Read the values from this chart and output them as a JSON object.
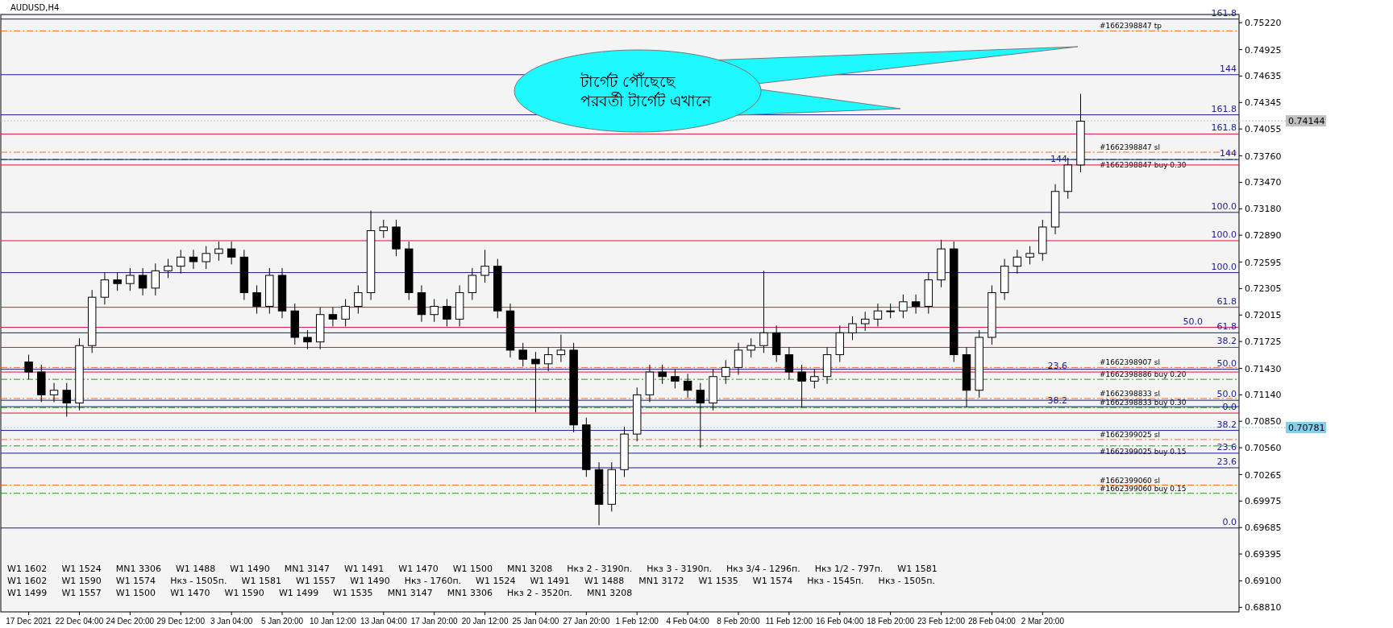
{
  "chart_data": {
    "type": "candlestick",
    "title": "AUDUSD,H4",
    "color": "#000000",
    "categories": [
      "17 Dec 2021",
      null,
      null,
      null,
      "22 Dec 04:00",
      null,
      null,
      null,
      "24 Dec 20:00",
      null,
      null,
      null,
      "29 Dec 12:00",
      null,
      null,
      null,
      "3 Jan 04:00",
      null,
      null,
      null,
      "5 Jan 20:00",
      null,
      null,
      null,
      "10 Jan 12:00",
      null,
      null,
      null,
      "13 Jan 04:00",
      null,
      null,
      null,
      "17 Jan 20:00",
      null,
      null,
      null,
      "20 Jan 12:00",
      null,
      null,
      null,
      "25 Jan 04:00",
      null,
      null,
      null,
      "27 Jan 20:00",
      null,
      null,
      null,
      "1 Feb 12:00",
      null,
      null,
      null,
      "4 Feb 04:00",
      null,
      null,
      null,
      "8 Feb 20:00",
      null,
      null,
      null,
      "11 Feb 12:00",
      null,
      null,
      null,
      "16 Feb 04:00",
      null,
      null,
      null,
      "18 Feb 20:00",
      null,
      null,
      null,
      "23 Feb 12:00",
      null,
      null,
      null,
      "28 Feb 04:00",
      null,
      null,
      null,
      "2 Mar 20:00",
      null,
      null,
      null,
      null,
      null,
      null,
      null,
      null,
      null,
      null,
      null,
      null,
      null,
      null,
      null
    ],
    "ohlc": [
      [
        0.715,
        0.7158,
        0.7131,
        0.7139
      ],
      [
        0.7139,
        0.7147,
        0.7106,
        0.7114
      ],
      [
        0.7114,
        0.7127,
        0.7106,
        0.7119
      ],
      [
        0.7119,
        0.7127,
        0.709,
        0.7105
      ],
      [
        0.7105,
        0.7176,
        0.7097,
        0.7168
      ],
      [
        0.7168,
        0.7229,
        0.716,
        0.7221
      ],
      [
        0.7221,
        0.7248,
        0.7213,
        0.724
      ],
      [
        0.724,
        0.7248,
        0.7228,
        0.7236
      ],
      [
        0.7236,
        0.7253,
        0.7228,
        0.7245
      ],
      [
        0.7245,
        0.7253,
        0.7223,
        0.7231
      ],
      [
        0.7231,
        0.7258,
        0.7223,
        0.725
      ],
      [
        0.725,
        0.7263,
        0.7242,
        0.7255
      ],
      [
        0.7255,
        0.7273,
        0.7247,
        0.7265
      ],
      [
        0.7265,
        0.7273,
        0.7252,
        0.726
      ],
      [
        0.726,
        0.7277,
        0.7252,
        0.7269
      ],
      [
        0.7269,
        0.7282,
        0.7261,
        0.7274
      ],
      [
        0.7274,
        0.7282,
        0.7257,
        0.7265
      ],
      [
        0.7265,
        0.7273,
        0.7218,
        0.7226
      ],
      [
        0.7226,
        0.7234,
        0.7203,
        0.7211
      ],
      [
        0.7211,
        0.7253,
        0.7203,
        0.7245
      ],
      [
        0.7245,
        0.7253,
        0.7198,
        0.7206
      ],
      [
        0.7206,
        0.7214,
        0.7169,
        0.7177
      ],
      [
        0.7177,
        0.7185,
        0.7164,
        0.7172
      ],
      [
        0.7172,
        0.721,
        0.7164,
        0.7202
      ],
      [
        0.7202,
        0.721,
        0.7189,
        0.7197
      ],
      [
        0.7197,
        0.7219,
        0.7189,
        0.7211
      ],
      [
        0.7211,
        0.7234,
        0.7203,
        0.7226
      ],
      [
        0.7226,
        0.7316,
        0.7218,
        0.7294
      ],
      [
        0.7294,
        0.7306,
        0.7286,
        0.7298
      ],
      [
        0.7298,
        0.7306,
        0.7266,
        0.7274
      ],
      [
        0.7274,
        0.7282,
        0.7218,
        0.7226
      ],
      [
        0.7226,
        0.7234,
        0.7194,
        0.7202
      ],
      [
        0.7202,
        0.7219,
        0.7194,
        0.7211
      ],
      [
        0.7211,
        0.7219,
        0.7189,
        0.7197
      ],
      [
        0.7197,
        0.7234,
        0.7189,
        0.7226
      ],
      [
        0.7226,
        0.7253,
        0.7218,
        0.7245
      ],
      [
        0.7245,
        0.7273,
        0.7237,
        0.7255
      ],
      [
        0.7255,
        0.7263,
        0.7198,
        0.7206
      ],
      [
        0.7206,
        0.7214,
        0.7155,
        0.7163
      ],
      [
        0.7163,
        0.7171,
        0.7145,
        0.7153
      ],
      [
        0.7153,
        0.7161,
        0.7095,
        0.7148
      ],
      [
        0.7148,
        0.7166,
        0.714,
        0.7158
      ],
      [
        0.7158,
        0.718,
        0.715,
        0.7163
      ],
      [
        0.7163,
        0.7171,
        0.7073,
        0.7081
      ],
      [
        0.7081,
        0.7089,
        0.7024,
        0.7032
      ],
      [
        0.7032,
        0.704,
        0.6971,
        0.6994
      ],
      [
        0.6994,
        0.704,
        0.6986,
        0.7032
      ],
      [
        0.7032,
        0.7079,
        0.7024,
        0.7071
      ],
      [
        0.7071,
        0.7122,
        0.7063,
        0.7114
      ],
      [
        0.7114,
        0.7147,
        0.7106,
        0.7139
      ],
      [
        0.7139,
        0.7147,
        0.7126,
        0.7134
      ],
      [
        0.7134,
        0.7142,
        0.7121,
        0.7129
      ],
      [
        0.7129,
        0.7137,
        0.7111,
        0.7119
      ],
      [
        0.7119,
        0.7127,
        0.7056,
        0.7105
      ],
      [
        0.7105,
        0.7142,
        0.7097,
        0.7134
      ],
      [
        0.7134,
        0.7152,
        0.7126,
        0.7144
      ],
      [
        0.7144,
        0.7171,
        0.7136,
        0.7163
      ],
      [
        0.7163,
        0.7176,
        0.7155,
        0.7168
      ],
      [
        0.7168,
        0.725,
        0.716,
        0.7182
      ],
      [
        0.7182,
        0.719,
        0.715,
        0.7158
      ],
      [
        0.7158,
        0.7166,
        0.7131,
        0.7139
      ],
      [
        0.7139,
        0.7147,
        0.71,
        0.7129
      ],
      [
        0.7129,
        0.7142,
        0.7121,
        0.7134
      ],
      [
        0.7134,
        0.7166,
        0.7126,
        0.7158
      ],
      [
        0.7158,
        0.719,
        0.715,
        0.7182
      ],
      [
        0.7182,
        0.72,
        0.7174,
        0.7192
      ],
      [
        0.7192,
        0.7205,
        0.7184,
        0.7197
      ],
      [
        0.7197,
        0.7214,
        0.7189,
        0.7206
      ],
      [
        0.7206,
        0.7214,
        0.7198,
        0.7206
      ],
      [
        0.7206,
        0.7224,
        0.7198,
        0.7216
      ],
      [
        0.7216,
        0.7224,
        0.7203,
        0.7211
      ],
      [
        0.7211,
        0.7248,
        0.7203,
        0.724
      ],
      [
        0.724,
        0.7284,
        0.7232,
        0.7274
      ],
      [
        0.7274,
        0.7282,
        0.715,
        0.7158
      ],
      [
        0.7158,
        0.7166,
        0.71,
        0.7119
      ],
      [
        0.7119,
        0.7185,
        0.7111,
        0.7177
      ],
      [
        0.7177,
        0.7234,
        0.7169,
        0.7226
      ],
      [
        0.7226,
        0.7263,
        0.7218,
        0.7255
      ],
      [
        0.7255,
        0.7273,
        0.7247,
        0.7265
      ],
      [
        0.7265,
        0.7277,
        0.7257,
        0.7269
      ],
      [
        0.7269,
        0.7306,
        0.7261,
        0.7298
      ],
      [
        0.7298,
        0.7345,
        0.729,
        0.7337
      ],
      [
        0.7337,
        0.7374,
        0.7329,
        0.7366
      ],
      [
        0.7366,
        0.7444,
        0.7358,
        0.7414
      ],
      null,
      null,
      null,
      null,
      null,
      null,
      null,
      null,
      null,
      null,
      null,
      null
    ],
    "ylim": [
      0.6876,
      0.7531
    ],
    "yticks": [
      {
        "value": 0.7522,
        "label": "0.75220"
      },
      {
        "value": 0.74925,
        "label": "0.74925"
      },
      {
        "value": 0.74635,
        "label": "0.74635"
      },
      {
        "value": 0.74345,
        "label": "0.74345"
      },
      {
        "value": 0.74055,
        "label": "0.74055"
      },
      {
        "value": 0.7376,
        "label": "0.73760"
      },
      {
        "value": 0.7347,
        "label": "0.73470"
      },
      {
        "value": 0.7318,
        "label": "0.73180"
      },
      {
        "value": 0.7289,
        "label": "0.72890"
      },
      {
        "value": 0.72595,
        "label": "0.72595"
      },
      {
        "value": 0.72305,
        "label": "0.72305"
      },
      {
        "value": 0.72015,
        "label": "0.72015"
      },
      {
        "value": 0.71725,
        "label": "0.71725"
      },
      {
        "value": 0.7143,
        "label": "0.71430"
      },
      {
        "value": 0.7114,
        "label": "0.71140"
      },
      {
        "value": 0.7085,
        "label": "0.70850"
      },
      {
        "value": 0.7056,
        "label": "0.70560"
      },
      {
        "value": 0.70265,
        "label": "0.70265"
      },
      {
        "value": 0.69975,
        "label": "0.69975"
      },
      {
        "value": 0.69685,
        "label": "0.69685"
      },
      {
        "value": 0.69395,
        "label": "0.69395"
      },
      {
        "value": 0.691,
        "label": "0.69100"
      },
      {
        "value": 0.6881,
        "label": "0.68810"
      }
    ],
    "ref_lines": [
      {
        "axis": "y",
        "value": 0.7513,
        "label": "#1662398847 tp",
        "color": "#ff6a1a",
        "line_style": "dashed"
      },
      {
        "axis": "y",
        "value": 0.738,
        "label": "#1662398847 sl",
        "color": "#ff6a1a",
        "line_style": "dashed"
      },
      {
        "axis": "y",
        "value": 0.7372,
        "label": "#1662398847 buy 0.30",
        "color": "#1f9a1f",
        "line_style": "dashed"
      },
      {
        "axis": "y",
        "value": 0.7144,
        "label": "#1662398907 sl",
        "color": "#ff6a1a",
        "line_style": "dashed"
      },
      {
        "axis": "y",
        "value": 0.7131,
        "label": "#1662398886 buy 0.20",
        "color": "#1f9a1f",
        "line_style": "dashed"
      },
      {
        "axis": "y",
        "value": 0.711,
        "label": "#1662398833 sl",
        "color": "#ff6a1a",
        "line_style": "dashed"
      },
      {
        "axis": "y",
        "value": 0.71,
        "label": "#1662398833 buy 0.30",
        "color": "#1f9a1f",
        "line_style": "dashed"
      },
      {
        "axis": "y",
        "value": 0.7065,
        "label": "#1662399025 sl",
        "color": "#ff6a1a",
        "line_style": "dashed"
      },
      {
        "axis": "y",
        "value": 0.7058,
        "label": "#1662399025 buy 0.15",
        "color": "#1f9a1f",
        "line_style": "dashed"
      },
      {
        "axis": "y",
        "value": 0.7015,
        "label": "#1662399060 sl",
        "color": "#ff6a1a",
        "line_style": "dashed"
      },
      {
        "axis": "y",
        "value": 0.7006,
        "label": "#1662399060 buy 0.15",
        "color": "#1f9a1f",
        "line_style": "dashed"
      },
      {
        "axis": "y",
        "value": 0.7526,
        "color": "#1a1a8c",
        "line_style": "solid"
      },
      {
        "axis": "y",
        "value": 0.7465,
        "color": "#1a1a8c",
        "line_style": "solid"
      },
      {
        "axis": "y",
        "value": 0.7421,
        "color": "#1a1a8c",
        "line_style": "solid"
      },
      {
        "axis": "y",
        "value": 0.7372,
        "color": "#1a1a8c",
        "line_style": "solid"
      },
      {
        "axis": "y",
        "value": 0.7314,
        "color": "#1a1a8c",
        "line_style": "solid"
      },
      {
        "axis": "y",
        "value": 0.7248,
        "color": "#1a1a8c",
        "line_style": "solid"
      },
      {
        "axis": "y",
        "value": 0.7182,
        "color": "#1a1a8c",
        "line_style": "solid"
      },
      {
        "axis": "y",
        "value": 0.7142,
        "color": "#1a1a8c",
        "line_style": "solid"
      },
      {
        "axis": "y",
        "value": 0.7108,
        "color": "#1a1a8c",
        "line_style": "solid"
      },
      {
        "axis": "y",
        "value": 0.7101,
        "color": "#1a1a8c",
        "line_style": "solid"
      },
      {
        "axis": "y",
        "value": 0.7075,
        "color": "#1a1a8c",
        "line_style": "solid"
      },
      {
        "axis": "y",
        "value": 0.705,
        "color": "#1a1a8c",
        "line_style": "solid"
      },
      {
        "axis": "y",
        "value": 0.7034,
        "color": "#1a1a8c",
        "line_style": "solid"
      },
      {
        "axis": "y",
        "value": 0.6968,
        "color": "#1a1a8c",
        "line_style": "solid"
      },
      {
        "axis": "y",
        "value": 0.74,
        "color": "#dc143c",
        "line_style": "solid"
      },
      {
        "axis": "y",
        "value": 0.7366,
        "color": "#dc143c",
        "line_style": "solid"
      },
      {
        "axis": "y",
        "value": 0.7283,
        "color": "#dc143c",
        "line_style": "solid"
      },
      {
        "axis": "y",
        "value": 0.721,
        "color": "#dc143c",
        "line_style": "solid"
      },
      {
        "axis": "y",
        "value": 0.7188,
        "color": "#dc143c",
        "line_style": "solid"
      },
      {
        "axis": "y",
        "value": 0.7166,
        "color": "#dc143c",
        "line_style": "solid"
      },
      {
        "axis": "y",
        "value": 0.7139,
        "color": "#dc143c",
        "line_style": "solid"
      },
      {
        "axis": "y",
        "value": 0.7094,
        "color": "#dc143c",
        "line_style": "solid"
      },
      {
        "axis": "y",
        "value": 0.74144,
        "label": "0.74144",
        "color": "#c0c0c0",
        "line_style": "dotted"
      },
      {
        "axis": "y",
        "value": 0.70781,
        "label": "0.70781",
        "color": "#87ceeb",
        "line_style": "dotted"
      }
    ],
    "annotations": [
      "টার্গেট পৌঁছেছে",
      "পরবর্তী টার্গেট এখানে",
      {
        "text": "161.8",
        "y": 0.7526
      },
      {
        "text": "144",
        "y": 0.7465
      },
      {
        "text": "161.8",
        "y": 0.7421
      },
      {
        "text": "144",
        "y": 0.7372
      },
      {
        "text": "100.0",
        "y": 0.7314
      },
      {
        "text": "100.0",
        "y": 0.7248
      },
      {
        "text": "61.8",
        "y": 0.7182
      },
      {
        "text": "50.0",
        "y": 0.7142
      },
      {
        "text": "50.0",
        "y": 0.7108
      },
      {
        "text": "38.2",
        "y": 0.7101
      },
      {
        "text": "38.2",
        "y": 0.7075
      },
      {
        "text": "23.6",
        "y": 0.705
      },
      {
        "text": "23.6",
        "y": 0.7034
      },
      {
        "text": "0.0",
        "y": 0.6968
      },
      {
        "text": "161.8",
        "y": 0.74
      },
      {
        "text": "144",
        "y": 0.7366
      },
      {
        "text": "100.0",
        "y": 0.7283
      },
      {
        "text": "61.8",
        "y": 0.721
      },
      {
        "text": "50.0",
        "y": 0.7188
      },
      {
        "text": "38.2",
        "y": 0.7166
      },
      {
        "text": "23.6",
        "y": 0.7139
      },
      {
        "text": "0.0",
        "y": 0.7094
      },
      "W1 1602",
      "W1 1524",
      "MN1 3306",
      "W1 1488",
      "W1 1490",
      "MN1 3147",
      "W1 1491",
      "W1 1470",
      "W1 1500",
      "MN1 3208",
      "Нкз 2 - 3190п.",
      "Нкз 3 - 3190п.",
      "Нкз 3/4 - 1296п.",
      "Нкз 1/2 - 797п.",
      "W1 1581",
      "W1 1602",
      "W1 1590",
      "W1 1574",
      "Нкз - 1505п.",
      "W1 1581",
      "W1 1557",
      "W1 1490",
      "Нкз - 1760п.",
      "W1 1524",
      "W1 1491",
      "W1 1488",
      "MN1 3172",
      "W1 1535",
      "W1 1574",
      "Нкз - 1545п.",
      "Нкз - 1505п.",
      "W1 1499",
      "W1 1557",
      "W1 1500",
      "W1 1470",
      "W1 1590",
      "W1 1499",
      "W1 1535",
      "MN1 3147",
      "MN1 3306",
      "Нкз 2 - 3520п.",
      "MN1 3208"
    ]
  }
}
